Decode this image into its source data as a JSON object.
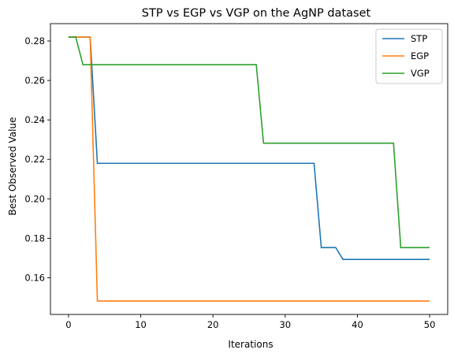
{
  "chart_data": {
    "type": "line",
    "title": "STP vs EGP vs VGP on the AgNP dataset",
    "xlabel": "Iterations",
    "ylabel": "Best Observed Value",
    "xlim": [
      -2.5,
      52.5
    ],
    "ylim": [
      0.1414,
      0.2888
    ],
    "xticks": [
      0,
      10,
      20,
      30,
      40,
      50
    ],
    "yticks": [
      0.16,
      0.18,
      0.2,
      0.22,
      0.24,
      0.26,
      0.28
    ],
    "ytick_labels": [
      "0.16",
      "0.18",
      "0.20",
      "0.22",
      "0.24",
      "0.26",
      "0.28"
    ],
    "grid": false,
    "legend": "top-right",
    "series": [
      {
        "name": "STP",
        "color": "#1f77b4",
        "points": [
          [
            0,
            0.282
          ],
          [
            3,
            0.282
          ],
          [
            4,
            0.218
          ],
          [
            34,
            0.218
          ],
          [
            35,
            0.1753
          ],
          [
            37,
            0.1753
          ],
          [
            38,
            0.1693
          ],
          [
            50,
            0.1693
          ]
        ]
      },
      {
        "name": "EGP",
        "color": "#ff7f0e",
        "points": [
          [
            0,
            0.282
          ],
          [
            3,
            0.282
          ],
          [
            4,
            0.1482
          ],
          [
            50,
            0.1482
          ]
        ]
      },
      {
        "name": "VGP",
        "color": "#2ca02c",
        "points": [
          [
            0,
            0.282
          ],
          [
            1,
            0.282
          ],
          [
            2,
            0.268
          ],
          [
            26,
            0.268
          ],
          [
            27,
            0.2282
          ],
          [
            45,
            0.2282
          ],
          [
            46,
            0.1753
          ],
          [
            50,
            0.1753
          ]
        ]
      }
    ]
  }
}
